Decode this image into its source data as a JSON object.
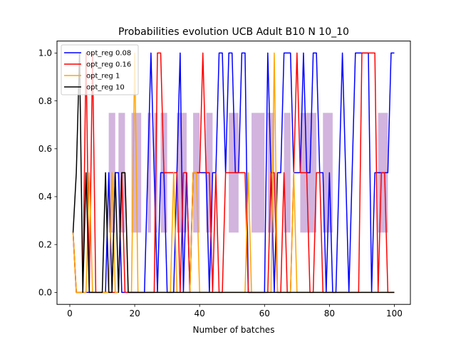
{
  "chart_data": {
    "type": "line",
    "title": "Probabilities evolution UCB Adult B10 N 10_10",
    "xlabel": "Number of batches",
    "ylabel": "",
    "xlim": [
      -3.95,
      104.95
    ],
    "ylim": [
      -0.05,
      1.05
    ],
    "xticks": [
      0,
      20,
      40,
      60,
      80,
      100
    ],
    "yticks": [
      0.0,
      0.2,
      0.4,
      0.6,
      0.8,
      1.0
    ],
    "xtick_labels": [
      "0",
      "20",
      "40",
      "60",
      "80",
      "100"
    ],
    "ytick_labels": [
      "0.0",
      "0.2",
      "0.4",
      "0.6",
      "0.8",
      "1.0"
    ],
    "legend_position": "top-left",
    "band": {
      "color": "#9b59b6",
      "opacity": 0.45,
      "segments": [
        [
          12,
          14,
          0.25,
          0.75
        ],
        [
          15,
          17,
          0.25,
          0.75
        ],
        [
          19,
          22,
          0.25,
          0.75
        ],
        [
          24,
          25,
          0.25,
          0.75
        ],
        [
          26,
          27,
          0.25,
          0.75
        ],
        [
          28,
          30,
          0.25,
          0.75
        ],
        [
          33,
          36,
          0.25,
          0.75
        ],
        [
          38,
          40,
          0.25,
          0.75
        ],
        [
          42,
          44,
          0.25,
          0.75
        ],
        [
          49,
          52,
          0.25,
          0.75
        ],
        [
          56,
          60,
          0.25,
          0.75
        ],
        [
          61,
          63,
          0.25,
          0.75
        ],
        [
          66,
          68,
          0.25,
          0.75
        ],
        [
          71,
          76,
          0.25,
          0.75
        ],
        [
          78,
          81,
          0.25,
          0.75
        ],
        [
          95,
          98,
          0.25,
          0.75
        ]
      ]
    },
    "series": [
      {
        "name": "opt_reg 0.08",
        "color": "#0000ff",
        "x": [
          1,
          2,
          3,
          4,
          5,
          6,
          7,
          8,
          9,
          10,
          11,
          12,
          13,
          14,
          15,
          16,
          17,
          18,
          19,
          20,
          21,
          22,
          23,
          24,
          25,
          26,
          27,
          28,
          29,
          30,
          31,
          32,
          33,
          34,
          35,
          36,
          37,
          38,
          39,
          40,
          41,
          42,
          43,
          44,
          45,
          46,
          47,
          48,
          49,
          50,
          51,
          52,
          53,
          54,
          55,
          56,
          57,
          58,
          59,
          60,
          61,
          62,
          63,
          64,
          65,
          66,
          67,
          68,
          69,
          70,
          71,
          72,
          73,
          74,
          75,
          76,
          77,
          78,
          79,
          80,
          81,
          82,
          83,
          84,
          85,
          86,
          87,
          88,
          89,
          90,
          91,
          92,
          93,
          94,
          95,
          96,
          97,
          98,
          99,
          100
        ],
        "y": [
          0.25,
          0,
          0,
          0,
          0,
          0,
          0,
          0,
          0,
          0,
          0,
          0.5,
          0,
          0.5,
          0.5,
          0,
          0,
          0,
          0,
          0,
          0,
          0,
          0,
          0.5,
          1,
          0.5,
          0,
          0.5,
          0.5,
          0,
          0,
          0,
          0.5,
          1,
          0,
          0.5,
          0,
          0.5,
          0.5,
          0.5,
          0.5,
          0.5,
          0,
          0.5,
          0.5,
          1,
          1,
          0.5,
          1,
          1,
          0.5,
          0.5,
          1,
          1,
          0,
          0,
          0,
          0,
          0,
          0,
          1,
          0.5,
          0,
          0.5,
          0.5,
          1,
          1,
          1,
          0.5,
          0.5,
          0.5,
          1,
          0.5,
          0.5,
          1,
          1,
          0.5,
          0.5,
          0,
          0.5,
          0,
          0,
          0.5,
          1,
          0.5,
          0,
          0.5,
          1,
          1,
          1,
          1,
          1,
          0,
          0.5,
          0.5,
          0.5,
          0.5,
          0.5,
          1,
          1
        ]
      },
      {
        "name": "opt_reg 0.16",
        "color": "#ff0000",
        "x": [
          1,
          2,
          3,
          4,
          5,
          6,
          7,
          8,
          9,
          10,
          11,
          12,
          13,
          14,
          15,
          16,
          17,
          18,
          19,
          20,
          21,
          22,
          23,
          24,
          25,
          26,
          27,
          28,
          29,
          30,
          31,
          32,
          33,
          34,
          35,
          36,
          37,
          38,
          39,
          40,
          41,
          42,
          43,
          44,
          45,
          46,
          47,
          48,
          49,
          50,
          51,
          52,
          53,
          54,
          55,
          56,
          57,
          58,
          59,
          60,
          61,
          62,
          63,
          64,
          65,
          66,
          67,
          68,
          69,
          70,
          71,
          72,
          73,
          74,
          75,
          76,
          77,
          78,
          79,
          80,
          81,
          82,
          83,
          84,
          85,
          86,
          87,
          88,
          89,
          90,
          91,
          92,
          93,
          94,
          95,
          96,
          97,
          98,
          99,
          100
        ],
        "y": [
          0.25,
          0,
          0,
          0,
          1,
          0,
          1,
          0,
          0,
          0,
          0,
          0,
          0,
          0,
          0,
          0.5,
          0,
          0,
          0,
          0,
          0,
          0,
          0,
          0,
          0,
          0,
          1,
          1,
          0.5,
          0.5,
          0.5,
          0.5,
          0.5,
          0,
          0.5,
          0.5,
          0,
          0.5,
          0.5,
          0.5,
          1,
          0.5,
          0.5,
          0,
          0.5,
          0,
          0,
          0.5,
          0.5,
          0.5,
          0.5,
          0.5,
          0.5,
          0.5,
          0,
          0,
          0,
          0,
          0,
          0,
          0,
          0.5,
          0.5,
          0,
          0,
          0.5,
          0,
          0,
          0.5,
          1,
          0.5,
          0.5,
          0.5,
          0,
          0,
          0.5,
          0.5,
          0,
          0,
          0,
          0,
          0,
          0,
          0,
          0,
          0,
          0,
          0,
          0,
          1,
          1,
          1,
          1,
          1,
          0,
          0.5,
          0.5,
          0,
          0,
          0
        ]
      },
      {
        "name": "opt_reg 1",
        "color": "#ffa500",
        "x": [
          1,
          2,
          3,
          4,
          5,
          6,
          7,
          8,
          9,
          10,
          11,
          12,
          13,
          14,
          15,
          16,
          17,
          18,
          19,
          20,
          21,
          22,
          23,
          24,
          25,
          26,
          27,
          28,
          29,
          30,
          31,
          32,
          33,
          34,
          35,
          36,
          37,
          38,
          39,
          40,
          41,
          42,
          43,
          44,
          45,
          46,
          47,
          48,
          49,
          50,
          51,
          52,
          53,
          54,
          55,
          56,
          57,
          58,
          59,
          60,
          61,
          62,
          63,
          64,
          65,
          66,
          67,
          68,
          69,
          70,
          71,
          72,
          73,
          74,
          75,
          76,
          77,
          78,
          79,
          80,
          81,
          82,
          83,
          84,
          85,
          86,
          87,
          88,
          89,
          90,
          91,
          92,
          93,
          94,
          95,
          96,
          97,
          98,
          99,
          100
        ],
        "y": [
          0.25,
          0,
          0,
          0,
          0,
          0.5,
          0,
          0,
          0,
          0,
          0,
          0,
          0.5,
          0,
          0,
          0.5,
          0.5,
          0,
          0,
          1,
          0,
          0,
          0,
          0,
          0,
          0,
          0,
          0,
          0,
          0,
          0,
          0.5,
          0,
          0,
          0,
          0,
          0,
          0.5,
          0.5,
          0,
          0,
          0,
          0,
          0,
          0,
          0,
          0,
          0,
          0,
          0,
          0,
          0,
          0,
          0,
          0.5,
          0,
          0,
          0,
          0,
          0,
          0,
          0,
          1,
          0,
          0,
          0,
          0,
          0,
          0.5,
          0,
          0,
          0,
          0,
          0,
          0,
          0,
          0,
          0,
          0,
          0,
          0,
          0,
          0,
          0,
          0,
          0,
          0,
          0,
          0,
          0,
          0,
          0,
          0,
          0,
          0,
          0,
          0,
          0,
          0,
          0
        ]
      },
      {
        "name": "opt_reg 10",
        "color": "#000000",
        "x": [
          1,
          2,
          3,
          4,
          5,
          6,
          7,
          8,
          9,
          10,
          11,
          12,
          13,
          14,
          15,
          16,
          17,
          18,
          19,
          20,
          21,
          22,
          23,
          24,
          25,
          26,
          27,
          28,
          29,
          30,
          31,
          32,
          33,
          34,
          35,
          36,
          37,
          38,
          39,
          40,
          41,
          42,
          43,
          44,
          45,
          46,
          47,
          48,
          49,
          50,
          51,
          52,
          53,
          54,
          55,
          56,
          57,
          58,
          59,
          60,
          61,
          62,
          63,
          64,
          65,
          66,
          67,
          68,
          69,
          70,
          71,
          72,
          73,
          74,
          75,
          76,
          77,
          78,
          79,
          80,
          81,
          82,
          83,
          84,
          85,
          86,
          87,
          88,
          89,
          90,
          91,
          92,
          93,
          94,
          95,
          96,
          97,
          98,
          99,
          100
        ],
        "y": [
          0.25,
          0.5,
          1,
          0,
          0.5,
          0,
          0,
          0,
          0,
          0,
          0.5,
          0,
          0,
          0.5,
          0,
          0.5,
          0.5,
          0,
          0,
          0,
          0,
          0,
          0,
          0,
          0,
          0,
          0,
          0,
          0,
          0,
          0,
          0,
          0,
          0,
          0,
          0,
          0,
          0,
          0,
          0,
          0,
          0,
          0,
          0,
          0,
          0,
          0,
          0,
          0,
          0,
          0,
          0,
          0,
          0,
          0,
          0,
          0,
          0,
          0,
          0,
          0,
          0,
          0,
          0,
          0,
          0,
          0,
          0,
          0,
          0,
          0,
          0,
          0,
          0,
          0,
          0,
          0,
          0,
          0,
          0,
          0,
          0,
          0,
          0,
          0,
          0,
          0,
          0,
          0,
          0,
          0,
          0,
          0,
          0,
          0,
          0,
          0,
          0,
          0,
          0
        ]
      }
    ]
  }
}
